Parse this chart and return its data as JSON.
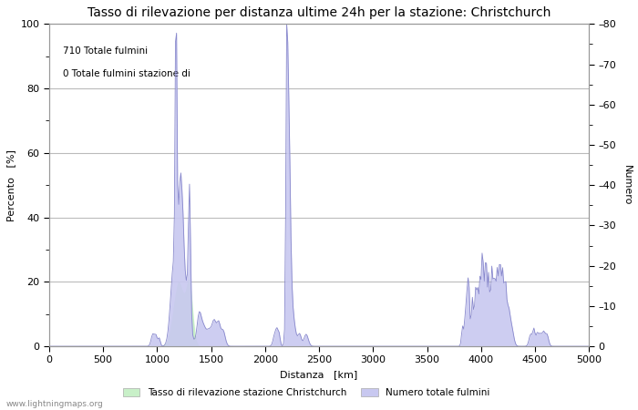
{
  "title": "Tasso di rilevazione per distanza ultime 24h per la stazione: Christchurch",
  "xlabel": "Distanza   [km]",
  "ylabel_left": "Percento   [%]",
  "ylabel_right": "Numero",
  "xlim": [
    0,
    5000
  ],
  "ylim_left": [
    0,
    100
  ],
  "ylim_right": [
    0,
    80
  ],
  "xticks": [
    0,
    500,
    1000,
    1500,
    2000,
    2500,
    3000,
    3500,
    4000,
    4500,
    5000
  ],
  "yticks_left_major": [
    0,
    20,
    40,
    60,
    80,
    100
  ],
  "yticks_left_minor": [
    10,
    30,
    50,
    70,
    90
  ],
  "yticks_right_major": [
    0,
    10,
    20,
    30,
    40,
    50,
    60,
    70,
    80
  ],
  "yticks_right_minor": [
    5,
    15,
    25,
    35,
    45,
    55,
    65,
    75
  ],
  "annotation_lines": [
    "710 Totale fulmini",
    "0 Totale fulmini stazione di"
  ],
  "legend_label_green": "Tasso di rilevazione stazione Christchurch",
  "legend_label_blue": "Numero totale fulmini",
  "watermark": "www.lightningmaps.org",
  "fill_green_color": "#c8f0c8",
  "fill_blue_color": "#c8c8f0",
  "line_blue_color": "#8888cc",
  "background_color": "#ffffff",
  "grid_color": "#bbbbbb",
  "title_fontsize": 10,
  "axis_fontsize": 8,
  "tick_fontsize": 8
}
